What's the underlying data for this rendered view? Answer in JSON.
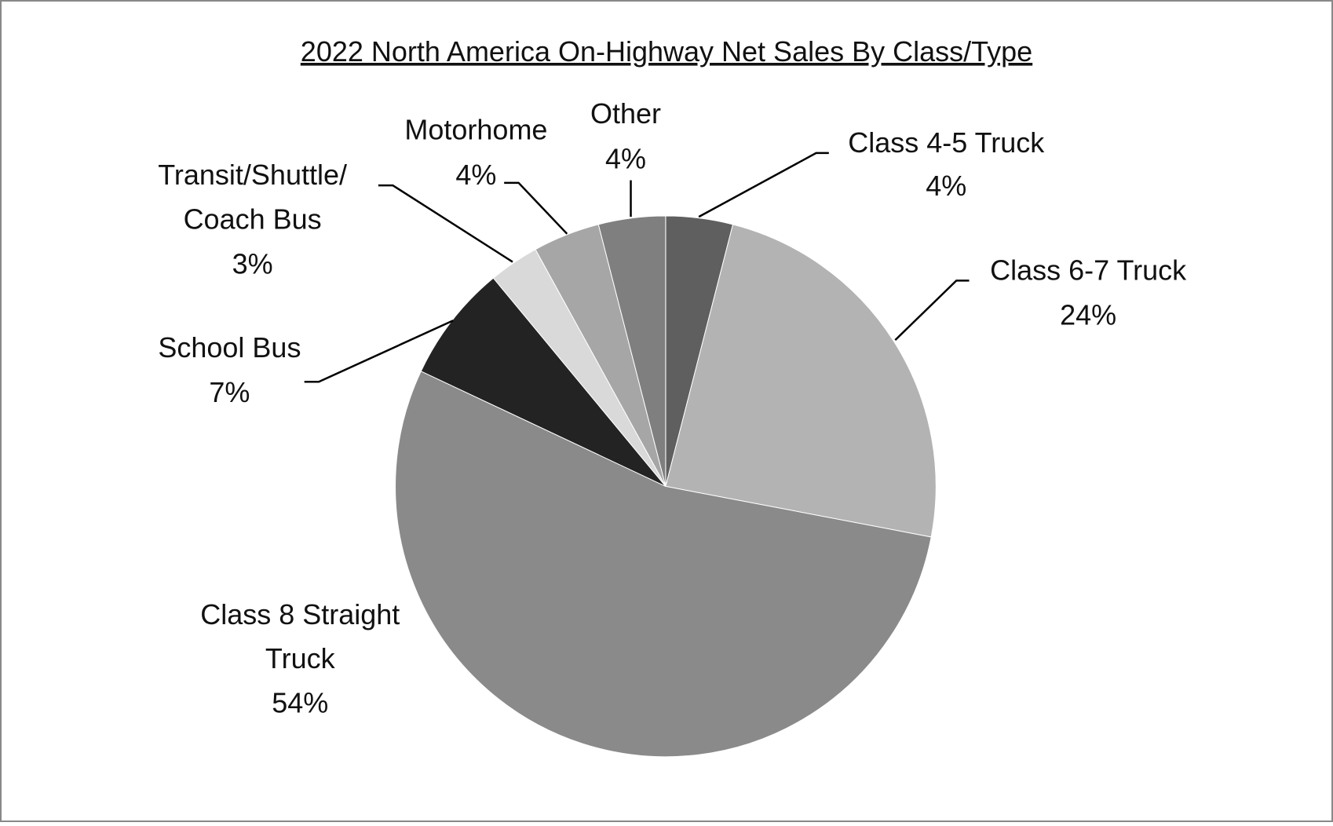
{
  "chart_data": {
    "type": "pie",
    "title": "2022 North America On-Highway Net Sales By Class/Type",
    "categories": [
      "Class 4-5 Truck",
      "Class 6-7 Truck",
      "Class 8 Straight\nTruck",
      "School Bus",
      "Transit/Shuttle/\nCoach Bus",
      "Motorhome",
      "Other"
    ],
    "values": [
      4,
      24,
      54,
      7,
      3,
      4,
      4
    ],
    "value_labels": [
      "4%",
      "24%",
      "54%",
      "7%",
      "3%",
      "4%",
      "4%"
    ],
    "colors": [
      "#5f5f5f",
      "#b3b3b3",
      "#8a8a8a",
      "#232323",
      "#d9d9d9",
      "#a6a6a6",
      "#7f7f7f"
    ]
  }
}
